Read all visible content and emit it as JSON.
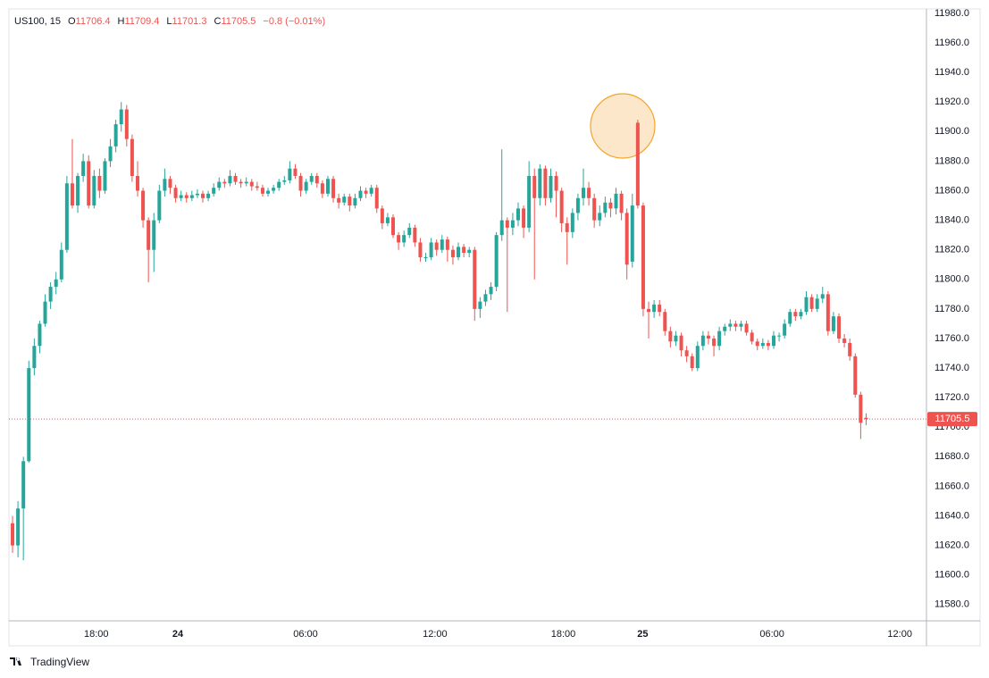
{
  "chart_data": {
    "type": "candlestick",
    "symbol": "US100, 15",
    "ohlc_prefixes": [
      "O",
      "H",
      "L",
      "C"
    ],
    "change": "−0.8 (−0.01%)",
    "branding": "TradingView",
    "up_color": "#26a69a",
    "down_color": "#ef5350",
    "grid": false,
    "ylim": [
      11569,
      11983
    ],
    "yticks": [
      {
        "value": 11580,
        "label": "11580.0"
      },
      {
        "value": 11600,
        "label": "11600.0"
      },
      {
        "value": 11620,
        "label": "11620.0"
      },
      {
        "value": 11640,
        "label": "11640.0"
      },
      {
        "value": 11660,
        "label": "11660.0"
      },
      {
        "value": 11680,
        "label": "11680.0"
      },
      {
        "value": 11700,
        "label": "11700.0"
      },
      {
        "value": 11720,
        "label": "11720.0"
      },
      {
        "value": 11740,
        "label": "11740.0"
      },
      {
        "value": 11760,
        "label": "11760.0"
      },
      {
        "value": 11780,
        "label": "11780.0"
      },
      {
        "value": 11800,
        "label": "11800.0"
      },
      {
        "value": 11820,
        "label": "11820.0"
      },
      {
        "value": 11840,
        "label": "11840.0"
      },
      {
        "value": 11860,
        "label": "11860.0"
      },
      {
        "value": 11880,
        "label": "11880.0"
      },
      {
        "value": 11900,
        "label": "11900.0"
      },
      {
        "value": 11920,
        "label": "11920.0"
      },
      {
        "value": 11940,
        "label": "11940.0"
      },
      {
        "value": 11960,
        "label": "11960.0"
      },
      {
        "value": 11980,
        "label": "11980.0"
      }
    ],
    "xlim": [
      -0.66,
      168.1
    ],
    "xticks": [
      {
        "value": 15.4,
        "label": "18:00"
      },
      {
        "value": 30.4,
        "label": "24"
      },
      {
        "value": 53.9,
        "label": "06:00"
      },
      {
        "value": 77.7,
        "label": "12:00"
      },
      {
        "value": 101.3,
        "label": "18:00"
      },
      {
        "value": 115.9,
        "label": "25"
      },
      {
        "value": 139.7,
        "label": "06:00"
      },
      {
        "value": 163.2,
        "label": "12:00"
      }
    ],
    "open": [
      11635,
      11620,
      11645,
      11677,
      11740,
      11755,
      11770,
      11785,
      11795,
      11800,
      11820,
      11865,
      11850,
      11870,
      11880,
      11850,
      11870,
      11860,
      11880,
      11890,
      11905,
      11915,
      11895,
      11870,
      11860,
      11840,
      11820,
      11840,
      11860,
      11868,
      11862,
      11855,
      11857,
      11855,
      11857,
      11858,
      11855,
      11858,
      11862,
      11866,
      11865,
      11870,
      11866,
      11865,
      11866,
      11863,
      11862,
      11858,
      11860,
      11862,
      11866,
      11867,
      11875,
      11870,
      11860,
      11866,
      11870,
      11865,
      11858,
      11868,
      11855,
      11852,
      11856,
      11850,
      11855,
      11860,
      11858,
      11862,
      11848,
      11838,
      11842,
      11830,
      11825,
      11830,
      11835,
      11825,
      11815,
      11815,
      11825,
      11820,
      11827,
      11820,
      11815,
      11822,
      11818,
      11820,
      11780,
      11785,
      11790,
      11795,
      11830,
      11840,
      11835,
      11840,
      11848,
      11835,
      11870,
      11855,
      11875,
      11855,
      11870,
      11860,
      11838,
      11832,
      11845,
      11855,
      11862,
      11855,
      11840,
      11845,
      11852,
      11848,
      11858,
      11845,
      11812,
      11906,
      11850,
      11780,
      11778,
      11783,
      11778,
      11765,
      11758,
      11762,
      11752,
      11748,
      11740,
      11755,
      11762,
      11760,
      11755,
      11765,
      11768,
      11770,
      11768,
      11770,
      11764,
      11758,
      11755,
      11757,
      11755,
      11762,
      11762,
      11770,
      11778,
      11775,
      11778,
      11788,
      11780,
      11787,
      11790,
      11765,
      11775,
      11760,
      11757,
      11748,
      11722,
      11706.4
    ],
    "high": [
      11640,
      11650,
      11680,
      11745,
      11760,
      11772,
      11790,
      11798,
      11805,
      11825,
      11870,
      11895,
      11872,
      11885,
      11884,
      11874,
      11875,
      11882,
      11895,
      11908,
      11920,
      11918,
      11898,
      11880,
      11862,
      11842,
      11845,
      11864,
      11875,
      11870,
      11864,
      11860,
      11859,
      11860,
      11861,
      11860,
      11860,
      11865,
      11869,
      11868,
      11874,
      11872,
      11868,
      11869,
      11868,
      11866,
      11864,
      11862,
      11864,
      11868,
      11870,
      11880,
      11878,
      11872,
      11868,
      11872,
      11872,
      11867,
      11870,
      11870,
      11858,
      11858,
      11858,
      11858,
      11863,
      11862,
      11864,
      11864,
      11850,
      11845,
      11844,
      11832,
      11833,
      11838,
      11837,
      11828,
      11818,
      11828,
      11827,
      11830,
      11829,
      11823,
      11825,
      11824,
      11822,
      11822,
      11788,
      11793,
      11798,
      11832,
      11888,
      11842,
      11845,
      11852,
      11850,
      11880,
      11875,
      11878,
      11877,
      11875,
      11873,
      11862,
      11842,
      11848,
      11858,
      11875,
      11866,
      11858,
      11850,
      11856,
      11855,
      11862,
      11860,
      11848,
      11858,
      11908,
      11852,
      11785,
      11786,
      11786,
      11780,
      11768,
      11765,
      11764,
      11755,
      11750,
      11758,
      11765,
      11765,
      11762,
      11768,
      11770,
      11773,
      11772,
      11772,
      11772,
      11766,
      11760,
      11760,
      11759,
      11765,
      11764,
      11773,
      11780,
      11780,
      11780,
      11792,
      11790,
      11790,
      11795,
      11792,
      11778,
      11777,
      11763,
      11760,
      11750,
      11724,
      11709.4
    ],
    "low": [
      11615,
      11612,
      11610,
      11676,
      11735,
      11750,
      11768,
      11780,
      11790,
      11798,
      11818,
      11848,
      11845,
      11866,
      11848,
      11848,
      11855,
      11858,
      11876,
      11886,
      11900,
      11890,
      11866,
      11856,
      11835,
      11798,
      11805,
      11838,
      11856,
      11858,
      11852,
      11853,
      11852,
      11853,
      11855,
      11852,
      11853,
      11856,
      11860,
      11862,
      11863,
      11864,
      11862,
      11863,
      11860,
      11860,
      11856,
      11856,
      11858,
      11860,
      11864,
      11865,
      11868,
      11856,
      11858,
      11864,
      11862,
      11855,
      11856,
      11852,
      11848,
      11850,
      11846,
      11848,
      11853,
      11855,
      11856,
      11845,
      11834,
      11836,
      11828,
      11820,
      11822,
      11828,
      11822,
      11812,
      11812,
      11813,
      11816,
      11818,
      11812,
      11810,
      11813,
      11815,
      11815,
      11772,
      11774,
      11782,
      11786,
      11792,
      11826,
      11778,
      11830,
      11836,
      11828,
      11832,
      11800,
      11850,
      11850,
      11852,
      11842,
      11832,
      11810,
      11828,
      11840,
      11850,
      11850,
      11835,
      11836,
      11842,
      11842,
      11844,
      11840,
      11800,
      11808,
      11848,
      11775,
      11760,
      11774,
      11775,
      11762,
      11754,
      11755,
      11748,
      11744,
      11738,
      11738,
      11752,
      11756,
      11748,
      11752,
      11762,
      11765,
      11765,
      11765,
      11762,
      11756,
      11752,
      11753,
      11752,
      11753,
      11758,
      11760,
      11768,
      11772,
      11773,
      11776,
      11778,
      11778,
      11784,
      11762,
      11763,
      11757,
      11754,
      11745,
      11720,
      11692,
      11701.3
    ],
    "close": [
      11620,
      11645,
      11677,
      11740,
      11755,
      11770,
      11785,
      11795,
      11800,
      11820,
      11865,
      11850,
      11870,
      11880,
      11850,
      11870,
      11860,
      11880,
      11890,
      11905,
      11915,
      11895,
      11870,
      11860,
      11840,
      11820,
      11840,
      11860,
      11868,
      11862,
      11855,
      11857,
      11855,
      11857,
      11858,
      11855,
      11858,
      11862,
      11866,
      11865,
      11870,
      11866,
      11865,
      11866,
      11863,
      11862,
      11858,
      11860,
      11862,
      11866,
      11867,
      11875,
      11870,
      11860,
      11866,
      11870,
      11865,
      11858,
      11868,
      11855,
      11852,
      11856,
      11850,
      11855,
      11860,
      11858,
      11862,
      11848,
      11838,
      11842,
      11830,
      11825,
      11830,
      11835,
      11825,
      11815,
      11815,
      11825,
      11820,
      11827,
      11820,
      11815,
      11822,
      11818,
      11820,
      11780,
      11785,
      11790,
      11795,
      11830,
      11840,
      11835,
      11840,
      11848,
      11835,
      11870,
      11855,
      11875,
      11855,
      11870,
      11860,
      11838,
      11832,
      11845,
      11855,
      11862,
      11855,
      11840,
      11845,
      11852,
      11848,
      11858,
      11845,
      11810,
      11850,
      11850,
      11780,
      11778,
      11783,
      11778,
      11765,
      11758,
      11762,
      11752,
      11748,
      11740,
      11755,
      11762,
      11760,
      11755,
      11765,
      11768,
      11770,
      11768,
      11770,
      11764,
      11758,
      11755,
      11757,
      11755,
      11762,
      11762,
      11770,
      11778,
      11775,
      11778,
      11788,
      11780,
      11787,
      11790,
      11765,
      11775,
      11760,
      11757,
      11748,
      11722,
      11703,
      11705.5
    ]
  }
}
